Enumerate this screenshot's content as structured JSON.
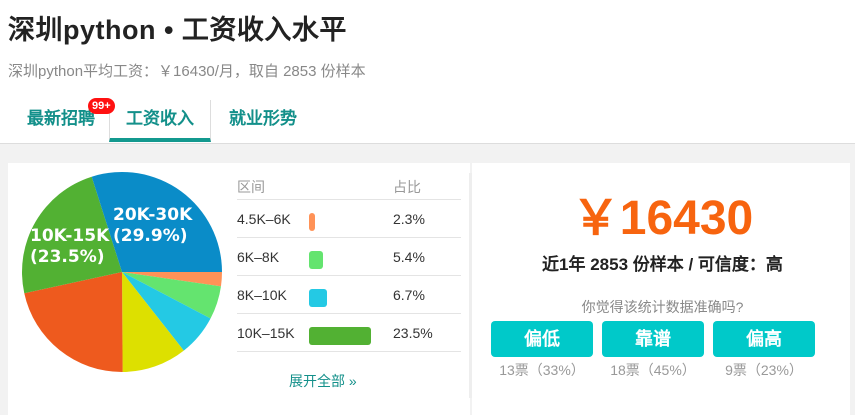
{
  "header": {
    "title": "深圳python • 工资收入水平",
    "subtitle": "深圳python平均工资：￥16430/月，取自 2853 份样本"
  },
  "tabs": [
    {
      "label": "最新招聘",
      "badge": "99+"
    },
    {
      "label": "工资收入",
      "active": true
    },
    {
      "label": "就业形势"
    }
  ],
  "chart_data": {
    "type": "pie",
    "slices": [
      {
        "label": "4.5K-6K",
        "value": 2.3,
        "color": "#ff9257"
      },
      {
        "label": "6K-8K",
        "value": 5.4,
        "color": "#64e46f"
      },
      {
        "label": "8K-10K",
        "value": 6.7,
        "color": "#24c9e4"
      },
      {
        "label": "",
        "value": 10.5,
        "color": "#dde000"
      },
      {
        "label": "",
        "value": 21.7,
        "color": "#ee5a1e"
      },
      {
        "label": "10K-15K",
        "value": 23.5,
        "color": "#52b133",
        "show_label": "10K-15K\n(23.5%)"
      },
      {
        "label": "20K-30K",
        "value": 29.9,
        "color": "#0a8cc8",
        "show_label": "20K-30K\n(29.9%)"
      }
    ],
    "labels": {
      "a1": "20K-30K",
      "a2": "(29.9%)",
      "b1": "10K-15K",
      "b2": "(23.5%)"
    }
  },
  "table": {
    "headers": [
      "区间",
      "占比"
    ],
    "rows": [
      {
        "range": "4.5K–6K",
        "pct": "2.3%",
        "value": 2.3,
        "color": "#ff9257"
      },
      {
        "range": "6K–8K",
        "pct": "5.4%",
        "value": 5.4,
        "color": "#64e46f"
      },
      {
        "range": "8K–10K",
        "pct": "6.7%",
        "value": 6.7,
        "color": "#24c9e4"
      },
      {
        "range": "10K–15K",
        "pct": "23.5%",
        "value": 23.5,
        "color": "#52b133"
      }
    ],
    "more": "展开全部 »"
  },
  "summary": {
    "amount": "￥16430",
    "sample": "近1年 2853 份样本 / 可信度：高",
    "question": "你觉得该统计数据准确吗?"
  },
  "votes": [
    {
      "label": "偏低",
      "count": "13票（33%）"
    },
    {
      "label": "靠谱",
      "count": "18票（45%）"
    },
    {
      "label": "偏高",
      "count": "9票（23%）"
    }
  ]
}
